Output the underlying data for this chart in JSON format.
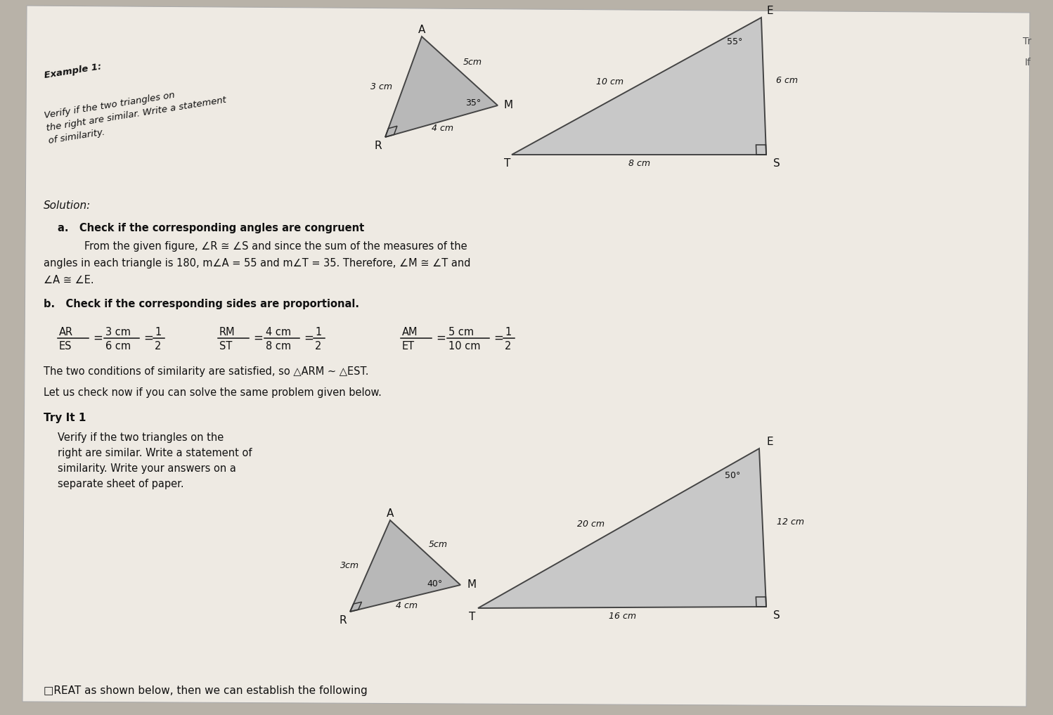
{
  "bg_color": "#b8b2a8",
  "paper_color": "#eeeae3",
  "title_example": "Example 1: Verify if the two triangles on\nthe right are similar. Write a statement\nof similarity.",
  "solution_label": "Solution:",
  "part_a_label": "a.   Check if the corresponding angles are congruent",
  "part_b_label": "b.   Check if the corresponding sides are proportional.",
  "conclusion": "The two conditions of similarity are satisfied, so △ARM ∼ △EST.",
  "try_intro": "Let us check now if you can solve the same problem given below.",
  "try_label": "Try It 1",
  "try_body_1": "Verify if the two triangles on the",
  "try_body_2": "right are similar. Write a statement of",
  "try_body_3": "similarity. Write your answers on a",
  "try_body_4": "separate sheet of paper.",
  "bottom": "□REAT as shown below, then we can establish the following",
  "dark": "#111111",
  "gray_tri": "#b8b8b8",
  "gray_tri2": "#c8c8c8"
}
